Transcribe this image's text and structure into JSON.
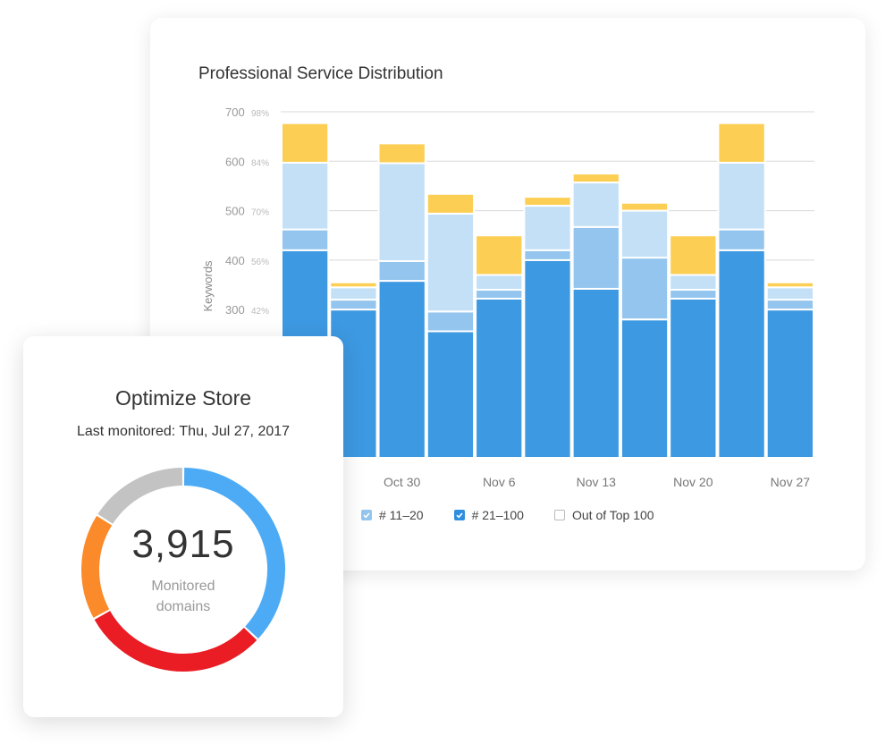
{
  "chart": {
    "title": "Professional Service Distribution",
    "legend": [
      {
        "label": "# 11–20",
        "color": "#93c5ee",
        "checked": true
      },
      {
        "label": "# 21–100",
        "color": "#2f8fdf",
        "checked": true
      },
      {
        "label": "Out of Top 100",
        "color": "#bbbbbb",
        "checked": false
      }
    ]
  },
  "chart_data": {
    "type": "bar",
    "stacked": true,
    "ylabel": "Keywords",
    "yticks": [
      300,
      400,
      500,
      600,
      700
    ],
    "ytick_percents": [
      "42%",
      "56%",
      "70%",
      "84%",
      "98%"
    ],
    "x_tick_labels": [
      "Oct 30",
      "Nov 6",
      "Nov 13",
      "Nov 20",
      "Nov 27"
    ],
    "grid": true,
    "series": [
      {
        "color": "#3d99e2",
        "values": [
          420,
          300,
          358,
          256,
          322,
          400,
          342,
          280,
          322,
          420,
          300
        ]
      },
      {
        "color": "#93c5ee",
        "values": [
          42,
          20,
          40,
          40,
          18,
          20,
          125,
          125,
          18,
          42,
          20
        ]
      },
      {
        "color": "#c4e0f7",
        "values": [
          135,
          25,
          198,
          198,
          30,
          90,
          90,
          95,
          30,
          135,
          25
        ]
      },
      {
        "color": "#fcce53",
        "values": [
          80,
          10,
          40,
          40,
          80,
          18,
          18,
          16,
          80,
          80,
          10
        ]
      }
    ]
  },
  "store": {
    "title": "Optimize Store",
    "last_monitored": "Last monitored: Thu, Jul 27, 2017",
    "value": "3,915",
    "label": "Monitored domains",
    "segments": [
      {
        "name": "blue",
        "color": "#4dabf5",
        "value": 37
      },
      {
        "name": "red",
        "color": "#ea1c24",
        "value": 30
      },
      {
        "name": "orange",
        "color": "#fb8a2a",
        "value": 17
      },
      {
        "name": "gray",
        "color": "#c3c3c3",
        "value": 16
      }
    ]
  }
}
